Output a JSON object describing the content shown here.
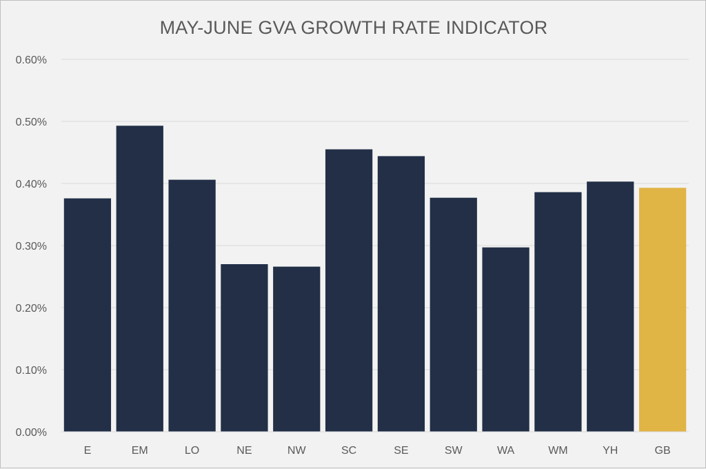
{
  "chart_data": {
    "type": "bar",
    "title": "MAY-JUNE GVA GROWTH RATE INDICATOR",
    "xlabel": "",
    "ylabel": "",
    "categories": [
      "E",
      "EM",
      "LO",
      "NE",
      "NW",
      "SC",
      "SE",
      "SW",
      "WA",
      "WM",
      "YH",
      "GB"
    ],
    "values": [
      0.376,
      0.493,
      0.406,
      0.27,
      0.266,
      0.455,
      0.444,
      0.377,
      0.297,
      0.386,
      0.403,
      0.393
    ],
    "ylim": [
      0,
      0.6
    ],
    "y_ticks": [
      "0.00%",
      "0.10%",
      "0.20%",
      "0.30%",
      "0.40%",
      "0.50%",
      "0.60%"
    ],
    "y_unit": "%",
    "grid": true,
    "legend": "none",
    "colors": {
      "bar": "#222f47",
      "highlight": "#e1b446",
      "highlight_category": "GB",
      "grid": "#d9d9d9",
      "text": "#595959"
    }
  }
}
